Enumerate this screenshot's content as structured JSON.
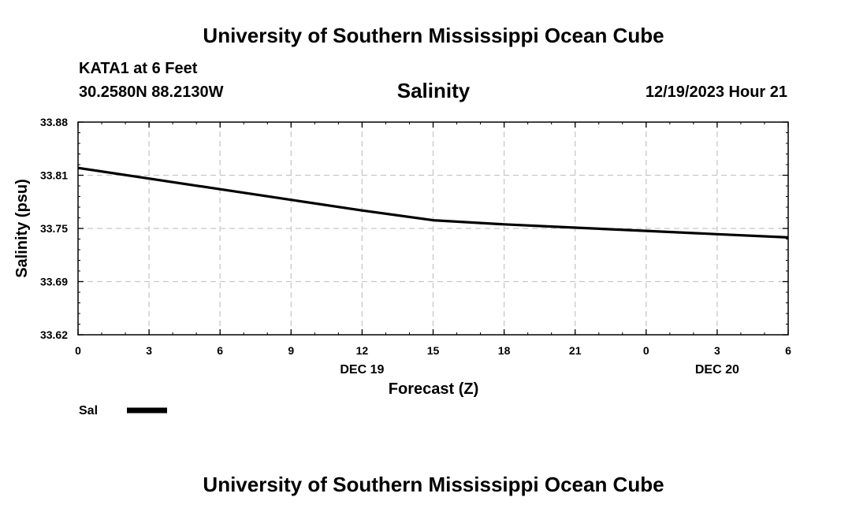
{
  "page_title": "University of Southern Mississippi Ocean Cube",
  "footer_title": "University of Southern Mississippi Ocean Cube",
  "station": "KATA1 at 6 Feet",
  "coords": "30.2580N  88.2130W",
  "chart_title": "Salinity",
  "timestamp": "12/19/2023 Hour 21",
  "chart_data": {
    "type": "line",
    "title": "Salinity",
    "xlabel": "Forecast (Z)",
    "ylabel": "Salinity (psu)",
    "ylim": [
      33.62,
      33.88
    ],
    "xlim": [
      0,
      30
    ],
    "y_ticks": [
      "33.88",
      "33.81",
      "33.75",
      "33.69",
      "33.62"
    ],
    "x_tick_labels": [
      "0",
      "3",
      "6",
      "9",
      "12",
      "15",
      "18",
      "21",
      "0",
      "3",
      "6"
    ],
    "date_labels": [
      {
        "label": "DEC 19",
        "at": 12
      },
      {
        "label": "DEC 20",
        "at": 27
      }
    ],
    "grid": true,
    "series": [
      {
        "name": "Sal",
        "x": [
          0,
          3,
          6,
          9,
          12,
          15,
          18,
          21,
          24,
          27,
          30
        ],
        "y": [
          33.824,
          33.811,
          33.798,
          33.785,
          33.772,
          33.76,
          33.755,
          33.751,
          33.747,
          33.743,
          33.739
        ]
      }
    ],
    "legend": {
      "label": "Sal",
      "placement": "bottom-left"
    }
  }
}
